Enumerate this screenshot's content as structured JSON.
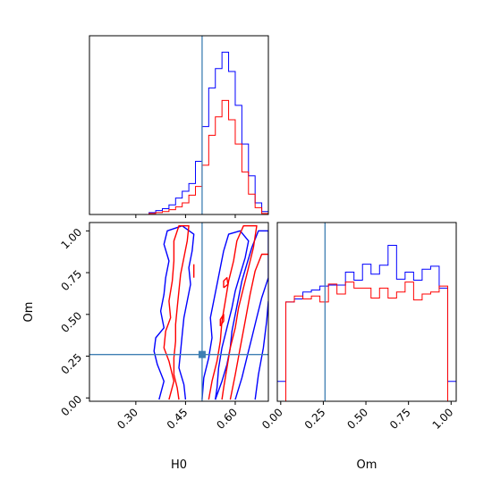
{
  "chart_data": {
    "type": "corner",
    "parameters": [
      "H0",
      "Om"
    ],
    "truths": {
      "H0": 0.5,
      "Om": 0.26
    },
    "truth_color": "#3f7fb3",
    "series_colors": {
      "blue": "#0000ff",
      "red": "#ff0000"
    },
    "panels": [
      {
        "id": "h0-hist",
        "type": "histogram",
        "parameter": "H0",
        "xlim": [
          0.16,
          0.7
        ],
        "ylim": [
          0,
          185
        ],
        "bin_edges": [
          0.34,
          0.36,
          0.38,
          0.4,
          0.42,
          0.44,
          0.46,
          0.48,
          0.5,
          0.52,
          0.54,
          0.56,
          0.58,
          0.6,
          0.62,
          0.64,
          0.66,
          0.68,
          0.7
        ],
        "series": [
          {
            "color": "blue",
            "counts": [
              2,
              4,
              6,
              10,
              17,
              24,
              32,
              55,
              91,
              131,
              151,
              168,
              148,
              113,
              73,
              40,
              12,
              3
            ]
          },
          {
            "color": "red",
            "counts": [
              1,
              2,
              3,
              5,
              8,
              12,
              20,
              29,
              51,
              82,
              101,
              118,
              98,
              73,
              44,
              21,
              7,
              1
            ]
          }
        ]
      },
      {
        "id": "om-hist",
        "type": "histogram",
        "parameter": "Om",
        "xlim": [
          -0.02,
          1.03
        ],
        "ylim": [
          0,
          180
        ],
        "bin_edges": [
          -0.02,
          0.03,
          0.08,
          0.13,
          0.18,
          0.23,
          0.28,
          0.33,
          0.38,
          0.43,
          0.48,
          0.53,
          0.58,
          0.63,
          0.68,
          0.73,
          0.78,
          0.83,
          0.88,
          0.93,
          0.98,
          1.03
        ],
        "series": [
          {
            "color": "blue",
            "counts": [
              20,
              100,
              103,
              110,
              112,
              116,
              117,
              117,
              130,
              122,
              138,
              128,
              137,
              157,
              123,
              130,
              122,
              133,
              136,
              114,
              20
            ]
          },
          {
            "color": "red",
            "counts": [
              0,
              100,
              106,
              103,
              106,
              100,
              118,
              108,
              120,
              114,
              114,
              104,
              114,
              104,
              110,
              120,
              102,
              108,
              110,
              116,
              0
            ]
          }
        ]
      },
      {
        "id": "h0-om-contour",
        "type": "contour",
        "x_parameter": "H0",
        "y_parameter": "Om",
        "xlim": [
          0.16,
          0.7
        ],
        "ylim": [
          -0.02,
          1.05
        ],
        "series": [
          {
            "color": "blue",
            "contours": [
              [
                [
                  0.37,
                  -0.01
                ],
                [
                  0.385,
                  0.1
                ],
                [
                  0.365,
                  0.2
                ],
                [
                  0.355,
                  0.28
                ],
                [
                  0.36,
                  0.36
                ],
                [
                  0.385,
                  0.42
                ],
                [
                  0.375,
                  0.52
                ],
                [
                  0.385,
                  0.62
                ],
                [
                  0.39,
                  0.72
                ],
                [
                  0.4,
                  0.82
                ],
                [
                  0.385,
                  0.92
                ],
                [
                  0.395,
                  1.0
                ],
                [
                  0.44,
                  1.03
                ],
                [
                  0.475,
                  0.98
                ],
                [
                  0.47,
                  0.88
                ],
                [
                  0.46,
                  0.78
                ],
                [
                  0.465,
                  0.68
                ],
                [
                  0.455,
                  0.58
                ],
                [
                  0.445,
                  0.48
                ],
                [
                  0.44,
                  0.38
                ],
                [
                  0.435,
                  0.28
                ],
                [
                  0.43,
                  0.18
                ],
                [
                  0.445,
                  0.08
                ],
                [
                  0.45,
                  -0.01
                ]
              ],
              [
                [
                  0.54,
                  -0.01
                ],
                [
                  0.56,
                  0.1
                ],
                [
                  0.575,
                  0.2
                ],
                [
                  0.585,
                  0.3
                ],
                [
                  0.59,
                  0.4
                ],
                [
                  0.6,
                  0.5
                ],
                [
                  0.61,
                  0.6
                ],
                [
                  0.62,
                  0.7
                ],
                [
                  0.635,
                  0.8
                ],
                [
                  0.65,
                  0.9
                ],
                [
                  0.67,
                  1.0
                ],
                [
                  0.7,
                  1.0
                ],
                [
                  0.7,
                  0.72
                ],
                [
                  0.68,
                  0.6
                ],
                [
                  0.665,
                  0.48
                ],
                [
                  0.65,
                  0.36
                ],
                [
                  0.635,
                  0.24
                ],
                [
                  0.62,
                  0.12
                ],
                [
                  0.6,
                  -0.01
                ]
              ],
              [
                [
                  0.5,
                  -0.01
                ],
                [
                  0.505,
                  0.12
                ],
                [
                  0.52,
                  0.24
                ],
                [
                  0.53,
                  0.36
                ],
                [
                  0.525,
                  0.48
                ],
                [
                  0.535,
                  0.58
                ],
                [
                  0.545,
                  0.68
                ],
                [
                  0.555,
                  0.78
                ],
                [
                  0.565,
                  0.88
                ],
                [
                  0.58,
                  0.98
                ],
                [
                  0.615,
                  1.0
                ],
                [
                  0.64,
                  0.94
                ],
                [
                  0.63,
                  0.84
                ],
                [
                  0.615,
                  0.74
                ],
                [
                  0.6,
                  0.64
                ],
                [
                  0.59,
                  0.54
                ],
                [
                  0.575,
                  0.42
                ],
                [
                  0.56,
                  0.3
                ],
                [
                  0.55,
                  0.18
                ],
                [
                  0.545,
                  0.06
                ],
                [
                  0.54,
                  -0.01
                ]
              ],
              [
                [
                  0.66,
                  -0.01
                ],
                [
                  0.67,
                  0.14
                ],
                [
                  0.685,
                  0.3
                ],
                [
                  0.695,
                  0.46
                ],
                [
                  0.7,
                  0.58
                ]
              ]
            ]
          },
          {
            "color": "red",
            "contours": [
              [
                [
                  0.4,
                  -0.01
                ],
                [
                  0.415,
                  0.1
                ],
                [
                  0.4,
                  0.22
                ],
                [
                  0.385,
                  0.3
                ],
                [
                  0.39,
                  0.4
                ],
                [
                  0.405,
                  0.48
                ],
                [
                  0.4,
                  0.58
                ],
                [
                  0.41,
                  0.7
                ],
                [
                  0.415,
                  0.82
                ],
                [
                  0.415,
                  0.94
                ],
                [
                  0.43,
                  1.03
                ],
                [
                  0.46,
                  1.03
                ],
                [
                  0.455,
                  0.94
                ],
                [
                  0.445,
                  0.84
                ],
                [
                  0.435,
                  0.74
                ],
                [
                  0.43,
                  0.64
                ],
                [
                  0.425,
                  0.54
                ],
                [
                  0.42,
                  0.44
                ],
                [
                  0.42,
                  0.34
                ],
                [
                  0.415,
                  0.24
                ],
                [
                  0.415,
                  0.14
                ],
                [
                  0.425,
                  0.06
                ],
                [
                  0.43,
                  -0.01
                ]
              ],
              [
                [
                  0.52,
                  -0.01
                ],
                [
                  0.53,
                  0.1
                ],
                [
                  0.545,
                  0.22
                ],
                [
                  0.555,
                  0.34
                ],
                [
                  0.56,
                  0.46
                ],
                [
                  0.57,
                  0.58
                ],
                [
                  0.58,
                  0.7
                ],
                [
                  0.595,
                  0.82
                ],
                [
                  0.605,
                  0.94
                ],
                [
                  0.625,
                  1.03
                ],
                [
                  0.665,
                  1.03
                ],
                [
                  0.655,
                  0.9
                ],
                [
                  0.64,
                  0.78
                ],
                [
                  0.625,
                  0.66
                ],
                [
                  0.61,
                  0.54
                ],
                [
                  0.6,
                  0.42
                ],
                [
                  0.585,
                  0.3
                ],
                [
                  0.575,
                  0.18
                ],
                [
                  0.565,
                  0.06
                ],
                [
                  0.56,
                  -0.01
                ]
              ],
              [
                [
                  0.585,
                  -0.01
                ],
                [
                  0.6,
                  0.14
                ],
                [
                  0.615,
                  0.3
                ],
                [
                  0.63,
                  0.46
                ],
                [
                  0.645,
                  0.62
                ],
                [
                  0.66,
                  0.76
                ],
                [
                  0.68,
                  0.86
                ],
                [
                  0.7,
                  0.86
                ]
              ],
              [
                [
                  0.555,
                  0.43
                ],
                [
                  0.565,
                  0.46
                ],
                [
                  0.565,
                  0.5
                ],
                [
                  0.555,
                  0.47
                ],
                [
                  0.555,
                  0.43
                ]
              ],
              [
                [
                  0.565,
                  0.66
                ],
                [
                  0.578,
                  0.68
                ],
                [
                  0.575,
                  0.72
                ],
                [
                  0.565,
                  0.7
                ],
                [
                  0.565,
                  0.66
                ]
              ],
              [
                [
                  0.475,
                  0.72
                ],
                [
                  0.475,
                  0.8
                ]
              ]
            ]
          }
        ]
      }
    ],
    "axes": {
      "H0": {
        "label": "H0",
        "ticks": [
          0.3,
          0.45,
          0.6
        ],
        "tick_labels": [
          "0.30",
          "0.45",
          "0.60"
        ]
      },
      "Om": {
        "label": "Om",
        "ticks": [
          0.0,
          0.25,
          0.5,
          0.75,
          1.0
        ],
        "tick_labels": [
          "0.00",
          "0.25",
          "0.50",
          "0.75",
          "1.00"
        ]
      }
    }
  }
}
